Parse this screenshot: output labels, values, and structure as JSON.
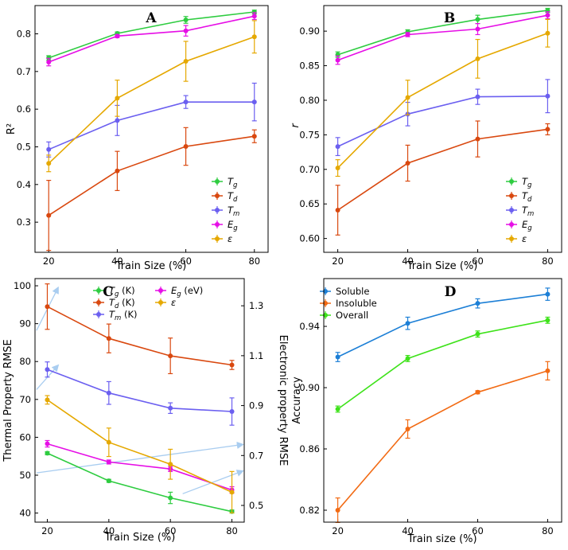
{
  "colors": {
    "Tg": "#2ecc40",
    "Td": "#d9480f",
    "Tm": "#6b5ff0",
    "Eg": "#e60ee6",
    "eps": "#e5a800",
    "soluble": "#1c7fd6",
    "insoluble": "#f26a13",
    "overall": "#3ee21a",
    "arrow": "#a9cdf0"
  },
  "chart_data": [
    {
      "panel": "A",
      "type": "line",
      "title": "A",
      "xlabel": "Train Size (%)",
      "ylabel": "R²",
      "x": [
        20,
        40,
        60,
        80
      ],
      "xlim": [
        16,
        84
      ],
      "ylim": [
        0.22,
        0.875
      ],
      "xticks": [
        20,
        40,
        60,
        80
      ],
      "yticks": [
        0.3,
        0.4,
        0.5,
        0.6,
        0.7,
        0.8
      ],
      "ytick_labels": [
        "0.3",
        "0.4",
        "0.5",
        "0.6",
        "0.7",
        "0.8"
      ],
      "legend": "bottom-right",
      "series": [
        {
          "key": "Tg",
          "name": "Tg",
          "values": [
            0.736,
            0.801,
            0.837,
            0.858
          ],
          "err": [
            0.006,
            0.004,
            0.009,
            0.005
          ]
        },
        {
          "key": "Td",
          "name": "Td",
          "values": [
            0.318,
            0.436,
            0.501,
            0.528
          ],
          "err": [
            0.093,
            0.052,
            0.05,
            0.017
          ]
        },
        {
          "key": "Tm",
          "name": "Tm",
          "values": [
            0.493,
            0.57,
            0.619,
            0.619
          ],
          "err": [
            0.02,
            0.04,
            0.017,
            0.05
          ]
        },
        {
          "key": "Eg",
          "name": "Eg",
          "values": [
            0.725,
            0.794,
            0.808,
            0.847
          ],
          "err": [
            0.01,
            0.004,
            0.014,
            0.009
          ]
        },
        {
          "key": "eps",
          "name": "ε",
          "values": [
            0.456,
            0.629,
            0.727,
            0.792
          ],
          "err": [
            0.022,
            0.048,
            0.053,
            0.043
          ]
        }
      ]
    },
    {
      "panel": "B",
      "type": "line",
      "title": "B",
      "xlabel": "Train Size (%)",
      "ylabel": "r",
      "x": [
        20,
        40,
        60,
        80
      ],
      "xlim": [
        16,
        84
      ],
      "ylim": [
        0.58,
        0.937
      ],
      "xticks": [
        20,
        40,
        60,
        80
      ],
      "yticks": [
        0.6,
        0.65,
        0.7,
        0.75,
        0.8,
        0.85,
        0.9
      ],
      "ytick_labels": [
        "0.60",
        "0.65",
        "0.70",
        "0.75",
        "0.80",
        "0.85",
        "0.90"
      ],
      "legend": "bottom-right",
      "series": [
        {
          "key": "Tg",
          "name": "Tg",
          "values": [
            0.866,
            0.899,
            0.917,
            0.93
          ],
          "err": [
            0.004,
            0.003,
            0.006,
            0.003
          ]
        },
        {
          "key": "Td",
          "name": "Td",
          "values": [
            0.641,
            0.709,
            0.744,
            0.758
          ],
          "err": [
            0.036,
            0.026,
            0.026,
            0.008
          ]
        },
        {
          "key": "Tm",
          "name": "Tm",
          "values": [
            0.733,
            0.78,
            0.805,
            0.806
          ],
          "err": [
            0.013,
            0.017,
            0.011,
            0.024
          ]
        },
        {
          "key": "Eg",
          "name": "Eg",
          "values": [
            0.858,
            0.895,
            0.903,
            0.923
          ],
          "err": [
            0.006,
            0.003,
            0.008,
            0.005
          ]
        },
        {
          "key": "eps",
          "name": "ε",
          "values": [
            0.702,
            0.804,
            0.86,
            0.897
          ],
          "err": [
            0.012,
            0.025,
            0.028,
            0.02
          ]
        }
      ]
    },
    {
      "panel": "C",
      "type": "line",
      "title": "C",
      "xlabel": "Train Size (%)",
      "ylabel": "Thermal Property RMSE",
      "y2label": "Electronic property RMSE",
      "x": [
        20,
        40,
        60,
        80
      ],
      "xlim": [
        16,
        84
      ],
      "ylim": [
        37.6,
        101.9
      ],
      "y2lim": [
        0.433,
        1.409
      ],
      "xticks": [
        20,
        40,
        60,
        80
      ],
      "yticks": [
        40,
        50,
        60,
        70,
        80,
        90,
        100
      ],
      "ytick_labels": [
        "40",
        "50",
        "60",
        "70",
        "80",
        "90",
        "100"
      ],
      "y2ticks": [
        0.5,
        0.7,
        0.9,
        1.1,
        1.3
      ],
      "y2tick_labels": [
        "0.5",
        "0.7",
        "0.9",
        "1.1",
        "1.3"
      ],
      "legend": "top-center",
      "series": [
        {
          "key": "Tg",
          "name": "Tg (K)",
          "axis": "left",
          "values": [
            55.8,
            48.5,
            44.0,
            40.4
          ],
          "err": [
            0.4,
            0.4,
            1.5,
            0.4
          ]
        },
        {
          "key": "Td",
          "name": "Td (K)",
          "axis": "left",
          "values": [
            94.5,
            86.1,
            81.5,
            79.1
          ],
          "err": [
            6.0,
            3.8,
            4.7,
            1.2
          ]
        },
        {
          "key": "Tm",
          "name": "Tm (K)",
          "axis": "left",
          "values": [
            77.9,
            71.7,
            67.7,
            66.8
          ],
          "err": [
            2.0,
            3.0,
            1.4,
            3.6
          ]
        },
        {
          "key": "Eg",
          "name": "Eg (eV)",
          "axis": "right",
          "values": [
            0.747,
            0.674,
            0.646,
            0.562
          ],
          "err": [
            0.013,
            0.008,
            0.01,
            0.013
          ]
        },
        {
          "key": "eps",
          "name": "ε",
          "axis": "right",
          "values": [
            0.923,
            0.753,
            0.665,
            0.553
          ],
          "err": [
            0.017,
            0.057,
            0.06,
            0.083
          ]
        }
      ],
      "arrows": [
        {
          "from": [
            16.5,
            88.2
          ],
          "to": [
            23.5,
            99.5
          ]
        },
        {
          "from": [
            16.5,
            72.6
          ],
          "to": [
            23.5,
            79.0
          ]
        },
        {
          "from": [
            16.5,
            50.6
          ],
          "to": [
            83.5,
            58.1
          ]
        },
        {
          "from": [
            64,
            45.1
          ],
          "to": [
            83.5,
            51.1
          ]
        }
      ]
    },
    {
      "panel": "D",
      "type": "line",
      "title": "D",
      "xlabel": "Train size (%)",
      "ylabel": "Accuracy",
      "x": [
        20,
        40,
        60,
        80
      ],
      "xlim": [
        16,
        84
      ],
      "ylim": [
        0.8122,
        0.9712
      ],
      "xticks": [
        20,
        40,
        60,
        80
      ],
      "yticks": [
        0.82,
        0.86,
        0.9,
        0.94
      ],
      "ytick_labels": [
        "0.82",
        "0.86",
        "0.90",
        "0.94"
      ],
      "legend": "top-left",
      "series": [
        {
          "key": "soluble",
          "name": "Soluble",
          "values": [
            0.92,
            0.942,
            0.955,
            0.961
          ],
          "err": [
            0.003,
            0.004,
            0.003,
            0.004
          ]
        },
        {
          "key": "insoluble",
          "name": "Insoluble",
          "values": [
            0.82,
            0.873,
            0.897,
            0.911
          ],
          "err": [
            0.008,
            0.006,
            0.001,
            0.006
          ]
        },
        {
          "key": "overall",
          "name": "Overall",
          "values": [
            0.886,
            0.919,
            0.935,
            0.944
          ],
          "err": [
            0.002,
            0.002,
            0.002,
            0.002
          ]
        }
      ]
    }
  ]
}
